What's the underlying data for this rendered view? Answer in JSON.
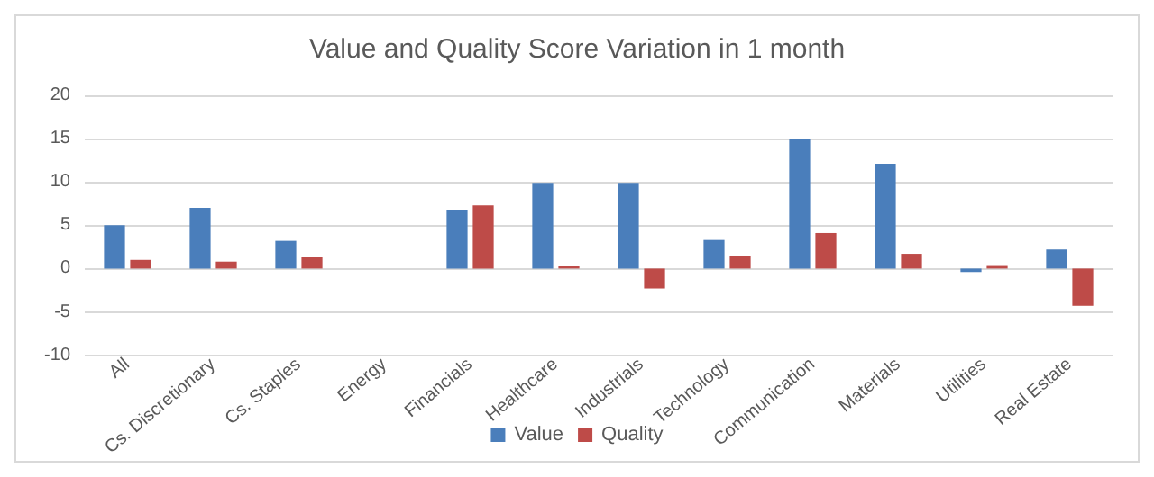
{
  "chart_data": {
    "type": "bar",
    "title": "Value and Quality Score Variation in 1 month",
    "categories": [
      "All",
      "Cs. Discretionary",
      "Cs. Staples",
      "Energy",
      "Financials",
      "Healthcare",
      "Industrials",
      "Technology",
      "Communication",
      "Materials",
      "Utilities",
      "Real Estate"
    ],
    "series": [
      {
        "name": "Value",
        "color": "#4a7ebb",
        "values": [
          5,
          7,
          3.2,
          null,
          6.8,
          9.9,
          9.9,
          3.3,
          15,
          12.1,
          -0.4,
          2.2
        ]
      },
      {
        "name": "Quality",
        "color": "#be4b48",
        "values": [
          1,
          0.8,
          1.3,
          null,
          7.3,
          0.3,
          -2.3,
          1.5,
          4.1,
          1.7,
          0.4,
          -4.3
        ]
      }
    ],
    "ylim": [
      -10,
      20
    ],
    "yticks": [
      -10,
      -5,
      0,
      5,
      10,
      15,
      20
    ],
    "grid": "y",
    "legend": "bottom"
  }
}
